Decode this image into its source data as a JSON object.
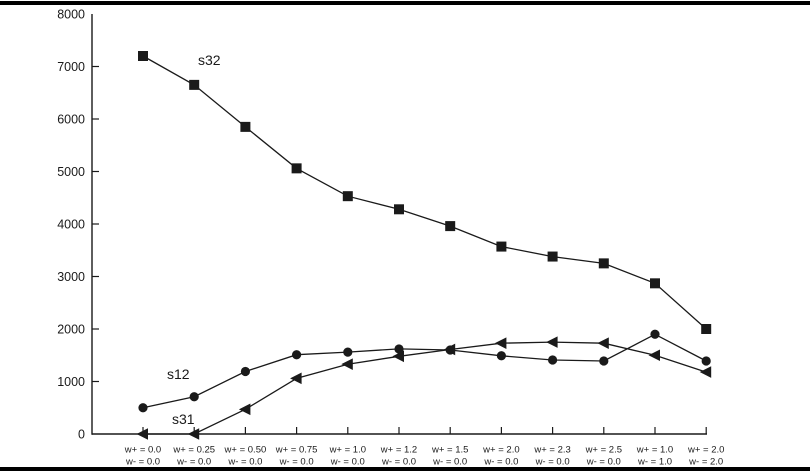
{
  "page": {
    "background": "#ffffff",
    "frame_rule_color": "#000000"
  },
  "chart_data": {
    "type": "line",
    "title": "",
    "xlabel": "",
    "ylabel": "",
    "ylim": [
      0,
      8000
    ],
    "grid": false,
    "legend_position": "inline-labels",
    "axis_color": "#1a1a1a",
    "yticks": [
      0,
      1000,
      2000,
      3000,
      4000,
      5000,
      6000,
      7000,
      8000
    ],
    "ytick_labels": [
      "0",
      "1000",
      "2000",
      "3000",
      "4000",
      "5000",
      "6000",
      "7000",
      "8000"
    ],
    "categories": [
      {
        "line1": "w+ = 0.0",
        "line2": "w- = 0.0"
      },
      {
        "line1": "w+ = 0.25",
        "line2": "w- = 0.0"
      },
      {
        "line1": "w+ = 0.50",
        "line2": "w- = 0.0"
      },
      {
        "line1": "w+ = 0.75",
        "line2": "w- = 0.0"
      },
      {
        "line1": "w+ = 1.0",
        "line2": "w- = 0.0"
      },
      {
        "line1": "w+ = 1.2",
        "line2": "w- = 0.0"
      },
      {
        "line1": "w+ = 1.5",
        "line2": "w- = 0.0"
      },
      {
        "line1": "w+ = 2.0",
        "line2": "w- = 0.0"
      },
      {
        "line1": "w+ = 2.3",
        "line2": "w- = 0.0"
      },
      {
        "line1": "w+ = 2.5",
        "line2": "w- = 0.0"
      },
      {
        "line1": "w+ = 1.0",
        "line2": "w- = 1.0"
      },
      {
        "line1": "w+ = 2.0",
        "line2": "w- = 2.0"
      }
    ],
    "series": [
      {
        "name": "s32",
        "label": "s32",
        "marker": "square",
        "color": "#1a1a1a",
        "values": [
          7200,
          6650,
          5850,
          5060,
          4530,
          4280,
          3960,
          3570,
          3380,
          3250,
          2870,
          2000
        ]
      },
      {
        "name": "s12",
        "label": "s12",
        "marker": "circle",
        "color": "#1a1a1a",
        "values": [
          500,
          710,
          1190,
          1510,
          1560,
          1620,
          1600,
          1490,
          1410,
          1390,
          1900,
          1390
        ]
      },
      {
        "name": "s31",
        "label": "s31",
        "marker": "triangle-left",
        "color": "#1a1a1a",
        "values": [
          0,
          0,
          470,
          1060,
          1330,
          1480,
          1610,
          1730,
          1750,
          1730,
          1500,
          1180
        ]
      }
    ]
  }
}
